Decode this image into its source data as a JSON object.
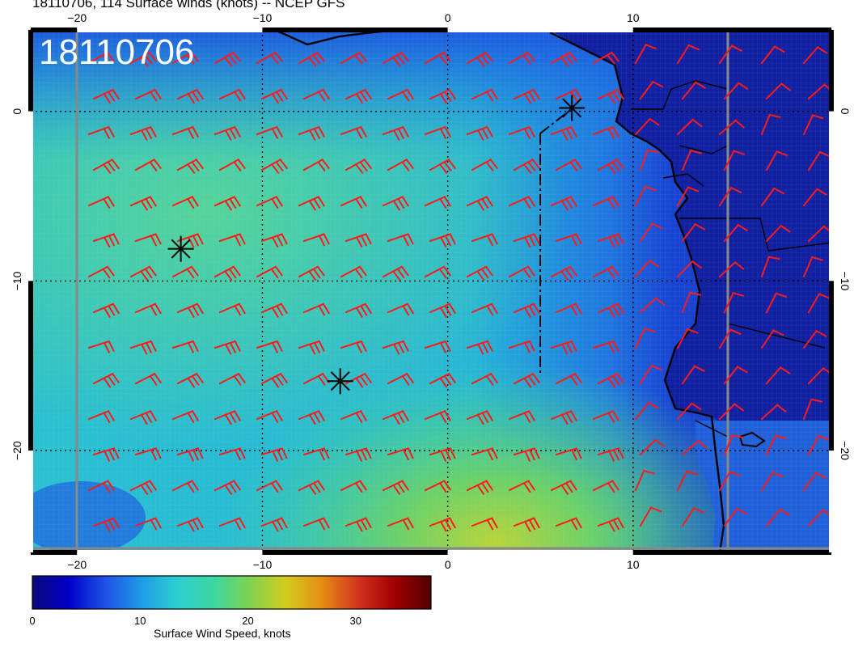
{
  "header": {
    "title": "18110706, 114 Surface winds (knots) -- NCEP GFS"
  },
  "map": {
    "stamp": "18110706",
    "extent": {
      "lon_min": -22.5,
      "lon_max": 20.7,
      "lat_min": -26,
      "lat_max": 4.8
    },
    "x_ticks": [
      {
        "value": -20,
        "label": "−20"
      },
      {
        "value": -10,
        "label": "−10"
      },
      {
        "value": 0,
        "label": "0"
      },
      {
        "value": 10,
        "label": "10"
      }
    ],
    "y_ticks": [
      {
        "value": 0,
        "label": "0"
      },
      {
        "value": -10,
        "label": "−10"
      },
      {
        "value": -20,
        "label": "−20"
      }
    ],
    "gridlines": {
      "lon": [
        -20,
        -10,
        0,
        10
      ],
      "lat": [
        0,
        -10,
        -20
      ]
    },
    "markers": [
      {
        "lon": 6.7,
        "lat": 0.2
      },
      {
        "lon": -14.4,
        "lat": -8.1
      },
      {
        "lon": -5.8,
        "lat": -15.9
      }
    ],
    "colors": {
      "barb": "#ff1a1a",
      "coast": "#000000",
      "grid": "#000000"
    }
  },
  "colorbar": {
    "label": "Surface Wind Speed, knots",
    "vmin": 0,
    "vmax": 37,
    "ticks": [
      {
        "value": 0,
        "label": "0"
      },
      {
        "value": 10,
        "label": "10"
      },
      {
        "value": 20,
        "label": "20"
      },
      {
        "value": 30,
        "label": "30"
      }
    ],
    "stops": [
      "#0a0a7a",
      "#0000c8",
      "#1e50e6",
      "#1e9be6",
      "#2dcfd2",
      "#3cd7a0",
      "#80d250",
      "#d2cd1e",
      "#e68c14",
      "#d2321e",
      "#a00000",
      "#500000"
    ]
  }
}
